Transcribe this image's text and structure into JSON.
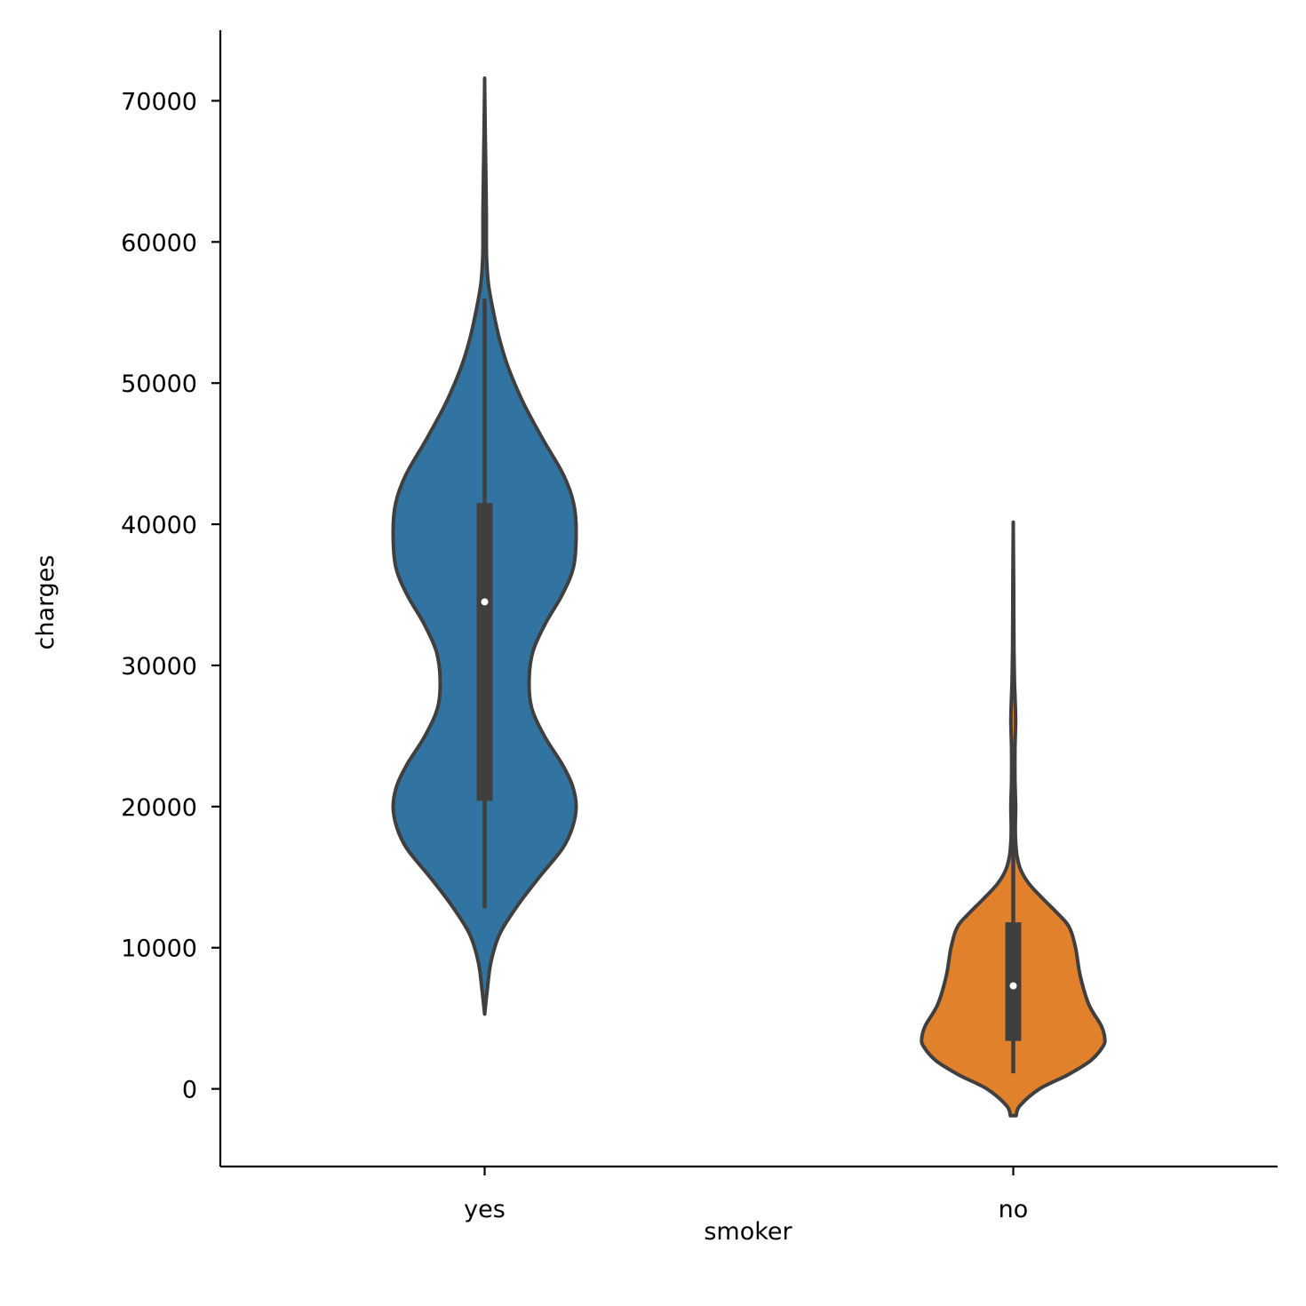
{
  "chart_data": {
    "type": "violin",
    "title": "",
    "xlabel": "smoker",
    "ylabel": "charges",
    "ylim": [
      -5500,
      75000
    ],
    "yticks": [
      0,
      10000,
      20000,
      30000,
      40000,
      50000,
      60000,
      70000
    ],
    "ytick_labels": [
      "0",
      "10000",
      "20000",
      "30000",
      "40000",
      "50000",
      "60000",
      "70000"
    ],
    "grid": false,
    "categories": [
      "yes",
      "no"
    ],
    "series": [
      {
        "category": "yes",
        "color": "#3274a1",
        "min": 12800,
        "q1": 20400,
        "median": 34500,
        "q3": 41500,
        "max": 56000,
        "density_range": [
          5300,
          71200
        ],
        "density": [
          [
            5300,
            0.0
          ],
          [
            7000,
            0.02
          ],
          [
            9000,
            0.05
          ],
          [
            11000,
            0.12
          ],
          [
            13000,
            0.26
          ],
          [
            15000,
            0.43
          ],
          [
            17000,
            0.61
          ],
          [
            18500,
            0.69
          ],
          [
            20000,
            0.72
          ],
          [
            21500,
            0.69
          ],
          [
            23000,
            0.61
          ],
          [
            25000,
            0.47
          ],
          [
            27000,
            0.37
          ],
          [
            29000,
            0.35
          ],
          [
            31000,
            0.38
          ],
          [
            33000,
            0.48
          ],
          [
            35000,
            0.61
          ],
          [
            37000,
            0.7
          ],
          [
            39500,
            0.72
          ],
          [
            41500,
            0.7
          ],
          [
            43500,
            0.62
          ],
          [
            46000,
            0.46
          ],
          [
            48500,
            0.31
          ],
          [
            51000,
            0.19
          ],
          [
            53000,
            0.12
          ],
          [
            55000,
            0.07
          ],
          [
            57000,
            0.03
          ],
          [
            59000,
            0.015
          ],
          [
            62000,
            0.013
          ],
          [
            65000,
            0.009
          ],
          [
            68000,
            0.004
          ],
          [
            71200,
            0.0
          ]
        ]
      },
      {
        "category": "no",
        "color": "#e1812c",
        "min": 1100,
        "q1": 3400,
        "median": 7300,
        "q3": 11800,
        "max": 22500,
        "density_range": [
          -1900,
          39800
        ],
        "density": [
          [
            -1900,
            0.03
          ],
          [
            -1200,
            0.07
          ],
          [
            0,
            0.28
          ],
          [
            1000,
            0.58
          ],
          [
            2000,
            0.82
          ],
          [
            3000,
            0.95
          ],
          [
            3600,
            0.97
          ],
          [
            4500,
            0.93
          ],
          [
            6000,
            0.8
          ],
          [
            8000,
            0.71
          ],
          [
            10000,
            0.66
          ],
          [
            11500,
            0.59
          ],
          [
            12500,
            0.46
          ],
          [
            13500,
            0.31
          ],
          [
            14500,
            0.17
          ],
          [
            15500,
            0.08
          ],
          [
            16500,
            0.04
          ],
          [
            17500,
            0.025
          ],
          [
            18500,
            0.022
          ],
          [
            20000,
            0.025
          ],
          [
            22000,
            0.018
          ],
          [
            24000,
            0.018
          ],
          [
            26000,
            0.025
          ],
          [
            27500,
            0.02
          ],
          [
            29000,
            0.012
          ],
          [
            31000,
            0.008
          ],
          [
            33000,
            0.006
          ],
          [
            35000,
            0.005
          ],
          [
            37000,
            0.003
          ],
          [
            39800,
            0.0
          ]
        ]
      }
    ]
  }
}
